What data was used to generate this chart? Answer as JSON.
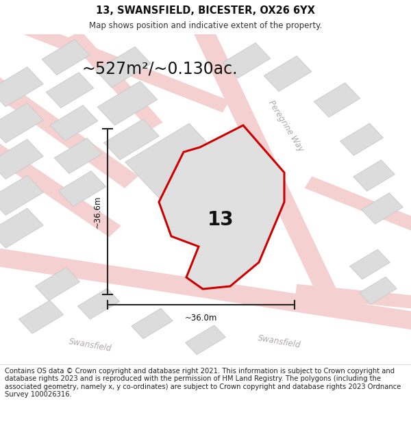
{
  "title": "13, SWANSFIELD, BICESTER, OX26 6YX",
  "subtitle": "Map shows position and indicative extent of the property.",
  "footer": "Contains OS data © Crown copyright and database right 2021. This information is subject to Crown copyright and database rights 2023 and is reproduced with the permission of HM Land Registry. The polygons (including the associated geometry, namely x, y co-ordinates) are subject to Crown copyright and database rights 2023 Ordnance Survey 100026316.",
  "area_text": "~527m²/~0.130ac.",
  "property_number": "13",
  "dim_width": "~36.0m",
  "dim_height": "~36.6m",
  "bg_color": "#f2eded",
  "road_fill_color": "#f5d0d0",
  "road_outline_color": "#ebbaba",
  "building_fill": "#dcdcdc",
  "building_edge": "#c8c8c8",
  "property_fill": "#e0e0e0",
  "property_edge": "#cc0000",
  "property_lw": 2.2,
  "dim_color": "#222222",
  "dim_lw": 1.5,
  "road_label_color": "#b0a8a8",
  "road_label_size": 8.5,
  "title_fontsize": 10.5,
  "subtitle_fontsize": 8.5,
  "footer_fontsize": 7.2,
  "area_fontsize": 17,
  "number_fontsize": 20,
  "white": "#ffffff"
}
